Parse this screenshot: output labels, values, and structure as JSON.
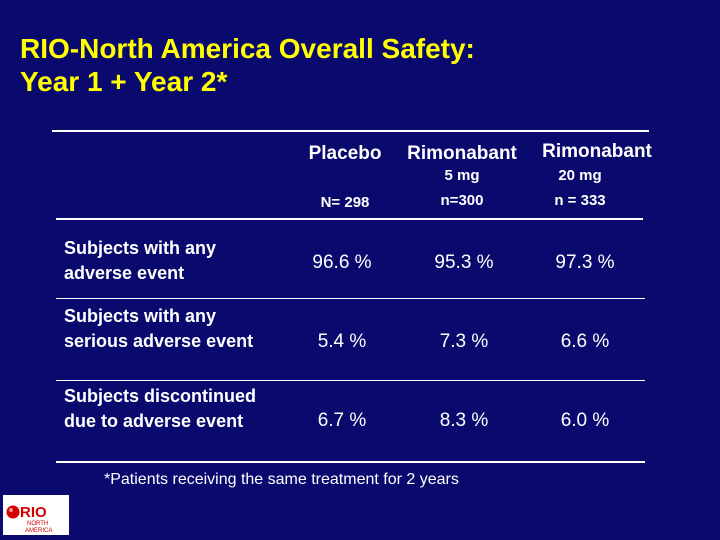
{
  "title": {
    "line1": "RIO-North America Overall Safety:",
    "line2": "Year 1 + Year 2*"
  },
  "table": {
    "columns": [
      {
        "name": "Placebo",
        "dose": "",
        "n": "N= 298"
      },
      {
        "name": "Rimonabant",
        "dose": "5 mg",
        "n": "n=300"
      },
      {
        "name": "Rimonabant",
        "dose": "20 mg",
        "n": "n = 333"
      }
    ],
    "rows": [
      {
        "label": "Subjects with any adverse event",
        "values": [
          "96.6 %",
          "95.3 %",
          "97.3 %"
        ]
      },
      {
        "label": "Subjects with any serious adverse event",
        "values": [
          "5.4 %",
          "7.3 %",
          "6.6 %"
        ]
      },
      {
        "label": "Subjects discontinued due to adverse event",
        "values": [
          "6.7 %",
          "8.3 %",
          "6.0 %"
        ]
      }
    ]
  },
  "footnote": "*Patients receiving the same treatment  for 2 years",
  "logo": {
    "line1": "RIO",
    "line2": "NORTH",
    "line3": "AMERICA"
  },
  "colors": {
    "background": "#0a0a6e",
    "title": "#ffff00",
    "text": "#ffffff",
    "logo_red": "#d40000"
  }
}
